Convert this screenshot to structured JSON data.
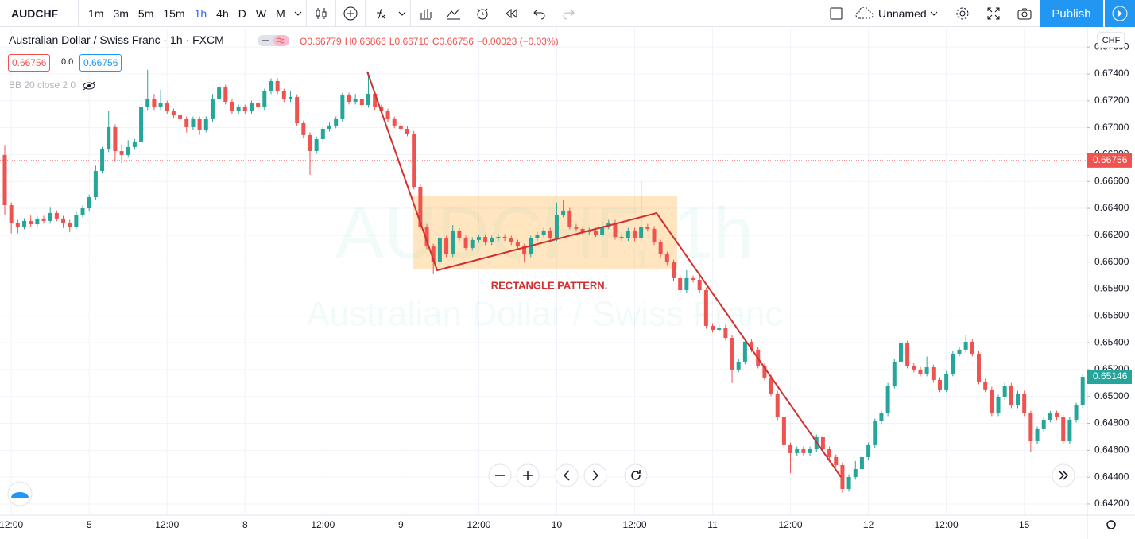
{
  "toolbar": {
    "symbol": "AUDCHF",
    "intervals": [
      "1m",
      "3m",
      "5m",
      "15m",
      "1h",
      "4h",
      "D",
      "W",
      "M"
    ],
    "layout_name": "Unnamed",
    "publish": "Publish"
  },
  "legend": {
    "title": "Australian Dollar / Swiss Franc · 1h · FXCM",
    "ohlc": [
      "O0.66779",
      "H0.66866",
      "L0.66710",
      "C0.66756",
      "−0.00023 (−0.03%)"
    ],
    "bid": "0.66756",
    "spread": "0.0",
    "ask": "0.66756",
    "indicator": "BB 20 close 2 0"
  },
  "chart_data": {
    "type": "candlestick",
    "currency": "CHF",
    "watermark": [
      "AUDCHF, 1h",
      "Australian Dollar / Swiss Franc"
    ],
    "annotations": [
      "RECTANGLE PATTERN."
    ],
    "up_color": "#26a69a",
    "down_color": "#ef5350",
    "grid": true,
    "ylim": [
      0.64117,
      0.67743
    ],
    "yticks": [
      {
        "value": 0.642,
        "label": "0.64200"
      },
      {
        "value": 0.644,
        "label": "0.64400"
      },
      {
        "value": 0.646,
        "label": "0.64600"
      },
      {
        "value": 0.648,
        "label": "0.64800"
      },
      {
        "value": 0.65,
        "label": "0.65000"
      },
      {
        "value": 0.652,
        "label": "0.65200"
      },
      {
        "value": 0.654,
        "label": "0.65400"
      },
      {
        "value": 0.656,
        "label": "0.65600"
      },
      {
        "value": 0.658,
        "label": "0.65800"
      },
      {
        "value": 0.66,
        "label": "0.66000"
      },
      {
        "value": 0.662,
        "label": "0.66200"
      },
      {
        "value": 0.664,
        "label": "0.66400"
      },
      {
        "value": 0.666,
        "label": "0.66600"
      },
      {
        "value": 0.668,
        "label": "0.66800"
      },
      {
        "value": 0.67,
        "label": "0.67000"
      },
      {
        "value": 0.672,
        "label": "0.67200"
      },
      {
        "value": 0.674,
        "label": "0.67400"
      },
      {
        "value": 0.676,
        "label": "0.67600"
      }
    ],
    "price_lines": [
      {
        "value": 0.66756,
        "color": "#ef5350",
        "dotted": true
      },
      {
        "value": 0.65146,
        "color": "#26a69a",
        "dotted": false
      }
    ],
    "x": [
      null,
      "12:00",
      null,
      null,
      null,
      null,
      null,
      null,
      null,
      null,
      null,
      null,
      null,
      "5",
      null,
      null,
      null,
      null,
      null,
      null,
      null,
      null,
      null,
      null,
      null,
      "12:00",
      null,
      null,
      null,
      null,
      null,
      null,
      null,
      null,
      null,
      null,
      null,
      "8",
      null,
      null,
      null,
      null,
      null,
      null,
      null,
      null,
      null,
      null,
      null,
      "12:00",
      null,
      null,
      null,
      null,
      null,
      null,
      null,
      null,
      null,
      null,
      null,
      "9",
      null,
      null,
      null,
      null,
      null,
      null,
      null,
      null,
      null,
      null,
      null,
      "12:00",
      null,
      null,
      null,
      null,
      null,
      null,
      null,
      null,
      null,
      null,
      null,
      "10",
      null,
      null,
      null,
      null,
      null,
      null,
      null,
      null,
      null,
      null,
      null,
      "12:00",
      null,
      null,
      null,
      null,
      null,
      null,
      null,
      null,
      null,
      null,
      null,
      "11",
      null,
      null,
      null,
      null,
      null,
      null,
      null,
      null,
      null,
      null,
      null,
      "12:00",
      null,
      null,
      null,
      null,
      null,
      null,
      null,
      null,
      null,
      null,
      null,
      "12",
      null,
      null,
      null,
      null,
      null,
      null,
      null,
      null,
      null,
      null,
      null,
      "12:00",
      null,
      null,
      null,
      null,
      null,
      null,
      null,
      null,
      null,
      null,
      null,
      "15",
      null,
      null,
      null,
      null,
      null,
      null,
      null,
      null,
      null
    ],
    "open": [
      0.66797,
      0.66424,
      0.66294,
      0.66264,
      0.66306,
      0.66282,
      0.66324,
      0.66306,
      0.66365,
      0.66324,
      0.66294,
      0.66264,
      0.66353,
      0.664,
      0.66483,
      0.66678,
      0.66838,
      0.67004,
      0.66826,
      0.66797,
      0.66856,
      0.66897,
      0.67152,
      0.67211,
      0.67152,
      0.67181,
      0.67122,
      0.67092,
      0.67063,
      0.67004,
      0.67063,
      0.66986,
      0.67063,
      0.67211,
      0.67299,
      0.67193,
      0.67122,
      0.67152,
      0.67122,
      0.67181,
      0.67152,
      0.6727,
      0.67347,
      0.6727,
      0.67211,
      0.67228,
      0.67033,
      0.66945,
      0.66826,
      0.66915,
      0.66992,
      0.67016,
      0.67063,
      0.6724,
      0.67193,
      0.67211,
      0.67169,
      0.67252,
      0.67152,
      0.67122,
      0.67063,
      0.67016,
      0.66992,
      0.66956,
      0.6656,
      0.66264,
      0.66116,
      0.65998,
      0.66176,
      0.66057,
      0.66235,
      0.66176,
      0.66105,
      0.66164,
      0.66187,
      0.66146,
      0.66176,
      0.66187,
      0.66176,
      0.66146,
      0.66116,
      0.66057,
      0.66176,
      0.66205,
      0.66235,
      0.66176,
      0.66353,
      0.66383,
      0.66264,
      0.66247,
      0.66223,
      0.66235,
      0.66205,
      0.66264,
      0.66294,
      0.66187,
      0.66176,
      0.66235,
      0.66176,
      0.66264,
      0.66247,
      0.66146,
      0.66057,
      0.65998,
      0.6588,
      0.65791,
      0.6588,
      0.65868,
      0.65791,
      0.65525,
      0.65495,
      0.65513,
      0.65436,
      0.652,
      0.65259,
      0.65407,
      0.65348,
      0.65229,
      0.65141,
      0.65022,
      0.64845,
      0.64638,
      0.64579,
      0.64608,
      0.64579,
      0.64608,
      0.64697,
      0.64608,
      0.64549,
      0.6449,
      0.64312,
      0.64401,
      0.6446,
      0.64549,
      0.64638,
      0.64815,
      0.64874,
      0.65081,
      0.65259,
      0.65395,
      0.65229,
      0.652,
      0.6517,
      0.65217,
      0.65123,
      0.65052,
      0.6517,
      0.65318,
      0.65348,
      0.65407,
      0.65318,
      0.65111,
      0.65052,
      0.64874,
      0.64993,
      0.65081,
      0.64933,
      0.65022,
      0.64874,
      0.64667,
      0.64756,
      0.64827,
      0.64874,
      0.64845,
      0.64667,
      0.64827,
      0.64933
    ],
    "high": [
      0.66866,
      0.66444,
      0.66314,
      0.66326,
      0.66346,
      0.66344,
      0.66344,
      0.66405,
      0.66385,
      0.66344,
      0.66314,
      0.66373,
      0.6642,
      0.66503,
      0.66718,
      0.66858,
      0.67124,
      0.67024,
      0.66876,
      0.66906,
      0.66917,
      0.67212,
      0.6743,
      0.67251,
      0.67281,
      0.67201,
      0.67142,
      0.67112,
      0.67083,
      0.67083,
      0.67083,
      0.67083,
      0.67251,
      0.67339,
      0.67319,
      0.67213,
      0.67172,
      0.67172,
      0.67201,
      0.67201,
      0.6729,
      0.67367,
      0.67367,
      0.6729,
      0.67268,
      0.67248,
      0.67053,
      0.66965,
      0.66935,
      0.67012,
      0.67036,
      0.67083,
      0.6726,
      0.6726,
      0.67251,
      0.67231,
      0.67418,
      0.67272,
      0.67172,
      0.67142,
      0.67083,
      0.67036,
      0.67012,
      0.66976,
      0.6658,
      0.66284,
      0.66136,
      0.66196,
      0.66196,
      0.66275,
      0.66255,
      0.66196,
      0.66184,
      0.66207,
      0.66207,
      0.66196,
      0.66207,
      0.66207,
      0.66196,
      0.66166,
      0.66136,
      0.66196,
      0.66225,
      0.66255,
      0.66255,
      0.66443,
      0.66463,
      0.66403,
      0.66284,
      0.66267,
      0.66255,
      0.66255,
      0.66304,
      0.66314,
      0.66314,
      0.66207,
      0.66255,
      0.66255,
      0.66602,
      0.66284,
      0.66267,
      0.66166,
      0.66077,
      0.66018,
      0.659,
      0.6594,
      0.659,
      0.65888,
      0.65811,
      0.65545,
      0.65533,
      0.65533,
      0.65456,
      0.65279,
      0.65427,
      0.65427,
      0.65368,
      0.65249,
      0.65161,
      0.65042,
      0.64865,
      0.64658,
      0.64628,
      0.64628,
      0.64628,
      0.64717,
      0.64717,
      0.64628,
      0.64569,
      0.6451,
      0.64421,
      0.6452,
      0.64569,
      0.64658,
      0.64835,
      0.64894,
      0.65101,
      0.65279,
      0.65415,
      0.65415,
      0.65249,
      0.6522,
      0.65297,
      0.65237,
      0.65143,
      0.6519,
      0.65338,
      0.65368,
      0.65454,
      0.65427,
      0.65338,
      0.65131,
      0.65072,
      0.65013,
      0.65101,
      0.65101,
      0.65042,
      0.65042,
      0.64894,
      0.64776,
      0.64847,
      0.64894,
      0.64894,
      0.64865,
      0.64847,
      0.64953,
      0.65166
    ],
    "low": [
      0.6635,
      0.66214,
      0.66214,
      0.66244,
      0.66262,
      0.66262,
      0.66286,
      0.66286,
      0.66304,
      0.66254,
      0.66224,
      0.66244,
      0.66333,
      0.6638,
      0.66463,
      0.66658,
      0.66818,
      0.66746,
      0.66737,
      0.66777,
      0.66836,
      0.66877,
      0.67132,
      0.67132,
      0.67132,
      0.67102,
      0.67072,
      0.67023,
      0.66964,
      0.66984,
      0.66946,
      0.66966,
      0.67043,
      0.67191,
      0.67173,
      0.67102,
      0.67102,
      0.67102,
      0.67102,
      0.67132,
      0.67132,
      0.6725,
      0.6725,
      0.67191,
      0.67191,
      0.67013,
      0.66925,
      0.66649,
      0.66806,
      0.66895,
      0.66972,
      0.66996,
      0.67043,
      0.67173,
      0.67173,
      0.67149,
      0.67149,
      0.67132,
      0.67102,
      0.67043,
      0.66996,
      0.66972,
      0.66936,
      0.6654,
      0.66244,
      0.66096,
      0.6591,
      0.65978,
      0.66037,
      0.66037,
      0.66156,
      0.66085,
      0.66085,
      0.66144,
      0.66126,
      0.66126,
      0.66156,
      0.66156,
      0.66126,
      0.66096,
      0.65997,
      0.66037,
      0.66156,
      0.66185,
      0.66156,
      0.66156,
      0.66333,
      0.66244,
      0.66227,
      0.66203,
      0.66203,
      0.66185,
      0.66185,
      0.66244,
      0.66167,
      0.66156,
      0.66156,
      0.66156,
      0.66156,
      0.66227,
      0.66126,
      0.66037,
      0.65978,
      0.6586,
      0.65771,
      0.65771,
      0.65848,
      0.65771,
      0.65505,
      0.65475,
      0.65475,
      0.65416,
      0.651,
      0.6518,
      0.65239,
      0.65328,
      0.65209,
      0.65121,
      0.65002,
      0.64825,
      0.64618,
      0.6443,
      0.64559,
      0.64559,
      0.64559,
      0.64588,
      0.64588,
      0.64529,
      0.6447,
      0.64283,
      0.64292,
      0.64381,
      0.6444,
      0.64529,
      0.64618,
      0.64795,
      0.64854,
      0.65061,
      0.65239,
      0.65209,
      0.6518,
      0.6515,
      0.6515,
      0.65103,
      0.65032,
      0.65032,
      0.6515,
      0.65298,
      0.65328,
      0.65298,
      0.65091,
      0.65032,
      0.64854,
      0.64854,
      0.64973,
      0.64913,
      0.64913,
      0.64854,
      0.64587,
      0.64647,
      0.64736,
      0.64807,
      0.64825,
      0.64647,
      0.64647,
      0.64807,
      0.64913
    ],
    "close": [
      0.66424,
      0.66294,
      0.66264,
      0.66306,
      0.66282,
      0.66324,
      0.66306,
      0.66365,
      0.66324,
      0.66294,
      0.66264,
      0.66353,
      0.664,
      0.66483,
      0.66678,
      0.66838,
      0.67004,
      0.66826,
      0.66797,
      0.66856,
      0.66897,
      0.67152,
      0.67211,
      0.67152,
      0.67181,
      0.67122,
      0.67092,
      0.67063,
      0.67004,
      0.67063,
      0.66986,
      0.67063,
      0.67211,
      0.67299,
      0.67193,
      0.67122,
      0.67152,
      0.67122,
      0.67181,
      0.67152,
      0.6727,
      0.67347,
      0.6727,
      0.67211,
      0.67228,
      0.67033,
      0.66945,
      0.66826,
      0.66915,
      0.66992,
      0.67016,
      0.67063,
      0.6724,
      0.67193,
      0.67211,
      0.67169,
      0.67252,
      0.67152,
      0.67122,
      0.67063,
      0.67016,
      0.66992,
      0.66956,
      0.6656,
      0.66264,
      0.66116,
      0.65998,
      0.66176,
      0.66057,
      0.66235,
      0.66176,
      0.66105,
      0.66164,
      0.66187,
      0.66146,
      0.66176,
      0.66187,
      0.66176,
      0.66146,
      0.66116,
      0.66057,
      0.66176,
      0.66205,
      0.66235,
      0.66176,
      0.66353,
      0.66383,
      0.66264,
      0.66247,
      0.66223,
      0.66235,
      0.66205,
      0.66264,
      0.66294,
      0.66187,
      0.66176,
      0.66235,
      0.66176,
      0.66264,
      0.66247,
      0.66146,
      0.66057,
      0.65998,
      0.6588,
      0.65791,
      0.6588,
      0.65868,
      0.65791,
      0.65525,
      0.65495,
      0.65513,
      0.65436,
      0.652,
      0.65259,
      0.65407,
      0.65348,
      0.65229,
      0.65141,
      0.65022,
      0.64845,
      0.64638,
      0.64579,
      0.64608,
      0.64579,
      0.64608,
      0.64697,
      0.64608,
      0.64549,
      0.6449,
      0.64312,
      0.64401,
      0.6446,
      0.64549,
      0.64638,
      0.64815,
      0.64874,
      0.65081,
      0.65259,
      0.65395,
      0.65229,
      0.652,
      0.6517,
      0.65217,
      0.65123,
      0.65052,
      0.6517,
      0.65318,
      0.65348,
      0.65407,
      0.65318,
      0.65111,
      0.65052,
      0.64874,
      0.64993,
      0.65081,
      0.64933,
      0.65022,
      0.64874,
      0.64667,
      0.64756,
      0.64827,
      0.64874,
      0.64845,
      0.64667,
      0.64827,
      0.64933,
      0.65146
    ]
  }
}
